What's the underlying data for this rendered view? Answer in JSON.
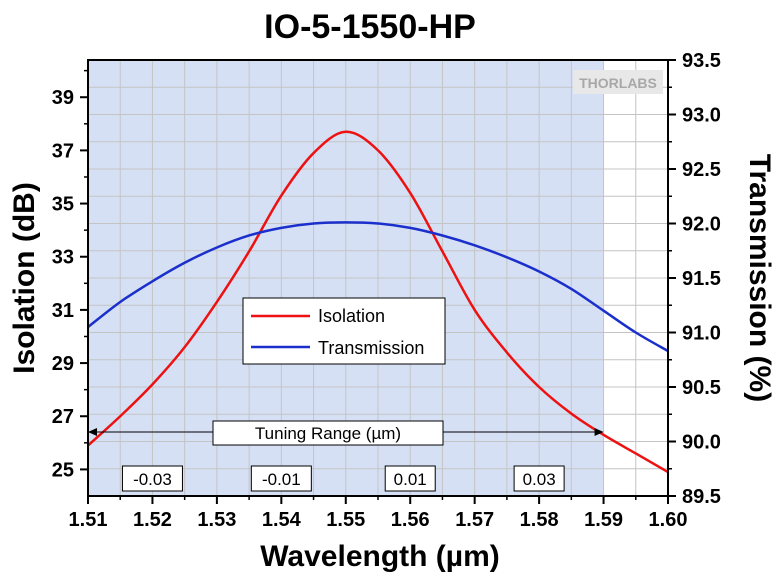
{
  "chart_data": {
    "type": "line",
    "title": "IO-5-1550-HP",
    "xlabel": "Wavelength (µm)",
    "ylabel": "Isolation (dB)",
    "y2label": "Transmission (%)",
    "xlim": [
      1.51,
      1.6
    ],
    "ylim": [
      24.0,
      40.4
    ],
    "y2lim": [
      89.5,
      93.5
    ],
    "x_ticks": [
      "1.51",
      "1.52",
      "1.53",
      "1.54",
      "1.55",
      "1.56",
      "1.57",
      "1.58",
      "1.59",
      "1.60"
    ],
    "y_ticks": [
      "25",
      "27",
      "29",
      "31",
      "33",
      "35",
      "37",
      "39"
    ],
    "y2_ticks": [
      "89.5",
      "90.0",
      "90.5",
      "91.0",
      "91.5",
      "92.0",
      "92.5",
      "93.0",
      "93.5"
    ],
    "grid": true,
    "shaded_region": {
      "from": 1.51,
      "to": 1.59,
      "color": "#d6e0f4"
    },
    "legend_position": "center-left",
    "series": [
      {
        "name": "Isolation",
        "axis": "left",
        "color": "#ee1111",
        "x": [
          1.51,
          1.515,
          1.52,
          1.525,
          1.53,
          1.535,
          1.54,
          1.545,
          1.55,
          1.555,
          1.56,
          1.565,
          1.57,
          1.575,
          1.58,
          1.585,
          1.59,
          1.595,
          1.6
        ],
        "values": [
          25.9,
          27.0,
          28.2,
          29.6,
          31.3,
          33.2,
          35.3,
          36.9,
          37.7,
          37.0,
          35.4,
          33.2,
          31.0,
          29.4,
          28.1,
          27.1,
          26.3,
          25.6,
          24.9
        ]
      },
      {
        "name": "Transmission",
        "axis": "right",
        "color": "#1a2fcc",
        "x": [
          1.51,
          1.515,
          1.52,
          1.525,
          1.53,
          1.535,
          1.54,
          1.545,
          1.55,
          1.555,
          1.56,
          1.565,
          1.57,
          1.575,
          1.58,
          1.585,
          1.59,
          1.595,
          1.6
        ],
        "values": [
          91.05,
          91.28,
          91.47,
          91.64,
          91.78,
          91.89,
          91.96,
          92.0,
          92.01,
          92.0,
          91.96,
          91.89,
          91.8,
          91.69,
          91.56,
          91.4,
          91.2,
          91.0,
          90.83
        ]
      }
    ],
    "annotations": {
      "tuning_label": "Tuning Range (µm)",
      "tuning_from": 1.51,
      "tuning_to": 1.59,
      "offset_boxes": [
        {
          "label": "-0.03",
          "x": 1.52
        },
        {
          "label": "-0.01",
          "x": 1.54
        },
        {
          "label": "0.01",
          "x": 1.56
        },
        {
          "label": "0.03",
          "x": 1.58
        }
      ]
    },
    "watermark": "THORLABS"
  }
}
